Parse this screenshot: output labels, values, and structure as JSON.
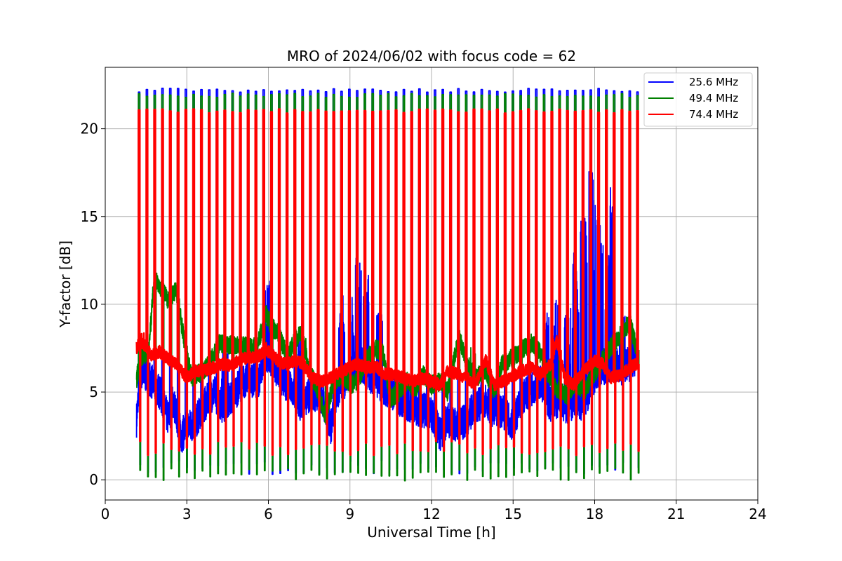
{
  "chart_data": {
    "type": "line",
    "title": "MRO of 2024/06/02 with focus code = 62",
    "xlabel": "Universal Time [h]",
    "ylabel": "Y-factor [dB]",
    "xlim": [
      0,
      24
    ],
    "ylim": [
      -1.15,
      23.5
    ],
    "xticks": [
      0,
      3,
      6,
      9,
      12,
      15,
      18,
      21,
      24
    ],
    "yticks": [
      0,
      5,
      10,
      15,
      20
    ],
    "grid": true,
    "legend_position": "top-right",
    "series": [
      {
        "name": "25.6 MHz",
        "color": "#0000ff",
        "baseline": [
          [
            1.15,
            3.4
          ],
          [
            1.3,
            6.2
          ],
          [
            1.6,
            5.8
          ],
          [
            2.0,
            5.0
          ],
          [
            2.3,
            3.5
          ],
          [
            2.5,
            4.5
          ],
          [
            2.8,
            2.5
          ],
          [
            3.0,
            3.0
          ],
          [
            3.3,
            3.2
          ],
          [
            3.6,
            4.2
          ],
          [
            4.0,
            5.0
          ],
          [
            4.3,
            4.2
          ],
          [
            4.7,
            4.8
          ],
          [
            5.0,
            5.5
          ],
          [
            5.3,
            5.8
          ],
          [
            5.6,
            5.5
          ],
          [
            5.9,
            7.2
          ],
          [
            6.1,
            6.8
          ],
          [
            6.4,
            6.0
          ],
          [
            6.8,
            5.2
          ],
          [
            7.2,
            4.3
          ],
          [
            7.6,
            5.0
          ],
          [
            8.0,
            4.6
          ],
          [
            8.3,
            3.0
          ],
          [
            8.5,
            4.8
          ],
          [
            8.8,
            5.6
          ],
          [
            9.1,
            6.2
          ],
          [
            9.4,
            6.6
          ],
          [
            9.7,
            6.0
          ],
          [
            10.0,
            5.6
          ],
          [
            10.3,
            5.2
          ],
          [
            10.7,
            4.8
          ],
          [
            11.0,
            4.4
          ],
          [
            11.3,
            4.2
          ],
          [
            11.6,
            4.0
          ],
          [
            12.0,
            3.8
          ],
          [
            12.3,
            2.6
          ],
          [
            12.6,
            3.4
          ],
          [
            13.0,
            3.0
          ],
          [
            13.3,
            3.5
          ],
          [
            13.6,
            4.2
          ],
          [
            14.0,
            4.6
          ],
          [
            14.3,
            3.8
          ],
          [
            14.6,
            4.0
          ],
          [
            15.0,
            3.2
          ],
          [
            15.3,
            4.6
          ],
          [
            15.7,
            5.2
          ],
          [
            16.0,
            5.6
          ],
          [
            16.4,
            4.2
          ],
          [
            16.7,
            4.6
          ],
          [
            17.0,
            4.0
          ],
          [
            17.3,
            4.6
          ],
          [
            17.6,
            4.2
          ],
          [
            17.9,
            5.6
          ],
          [
            18.2,
            6.3
          ],
          [
            18.6,
            6.6
          ],
          [
            19.0,
            6.4
          ],
          [
            19.3,
            6.6
          ],
          [
            19.55,
            7.0
          ]
        ],
        "spikes": [
          [
            4.4,
            7.6
          ],
          [
            6.0,
            11.4
          ],
          [
            7.2,
            9.0
          ],
          [
            8.7,
            10.5
          ],
          [
            9.15,
            11.0
          ],
          [
            9.3,
            13.2
          ],
          [
            9.6,
            12.2
          ],
          [
            10.1,
            9.5
          ],
          [
            16.2,
            9.5
          ],
          [
            16.6,
            10.5
          ],
          [
            17.0,
            10.0
          ],
          [
            17.3,
            13.4
          ],
          [
            17.6,
            15.0
          ],
          [
            17.9,
            18.0
          ],
          [
            18.2,
            15.2
          ],
          [
            18.5,
            13.0
          ],
          [
            18.65,
            17.2
          ],
          [
            19.0,
            9.5
          ],
          [
            19.4,
            8.2
          ]
        ]
      },
      {
        "name": "49.4 MHz",
        "color": "#008000",
        "baseline": [
          [
            1.15,
            5.7
          ],
          [
            1.3,
            7.0
          ],
          [
            1.6,
            7.3
          ],
          [
            1.8,
            11.6
          ],
          [
            2.0,
            11.0
          ],
          [
            2.3,
            10.3
          ],
          [
            2.6,
            10.8
          ],
          [
            2.8,
            9.0
          ],
          [
            3.0,
            7.0
          ],
          [
            3.2,
            5.8
          ],
          [
            3.5,
            6.1
          ],
          [
            3.8,
            6.5
          ],
          [
            4.2,
            7.8
          ],
          [
            4.6,
            7.7
          ],
          [
            5.0,
            7.7
          ],
          [
            5.3,
            7.5
          ],
          [
            5.6,
            7.6
          ],
          [
            5.9,
            9.5
          ],
          [
            6.1,
            8.8
          ],
          [
            6.4,
            8.2
          ],
          [
            6.7,
            7.0
          ],
          [
            7.0,
            8.0
          ],
          [
            7.2,
            8.4
          ],
          [
            7.5,
            6.2
          ],
          [
            7.8,
            5.2
          ],
          [
            8.1,
            3.6
          ],
          [
            8.4,
            5.6
          ],
          [
            8.7,
            6.0
          ],
          [
            9.0,
            5.4
          ],
          [
            9.3,
            5.6
          ],
          [
            9.6,
            6.8
          ],
          [
            9.9,
            7.5
          ],
          [
            10.2,
            7.3
          ],
          [
            10.5,
            4.6
          ],
          [
            10.8,
            5.0
          ],
          [
            11.1,
            5.6
          ],
          [
            11.4,
            5.2
          ],
          [
            11.7,
            6.0
          ],
          [
            12.0,
            5.4
          ],
          [
            12.3,
            5.6
          ],
          [
            12.6,
            5.0
          ],
          [
            13.0,
            8.2
          ],
          [
            13.3,
            6.6
          ],
          [
            13.6,
            5.8
          ],
          [
            14.0,
            6.2
          ],
          [
            14.3,
            5.0
          ],
          [
            14.6,
            6.6
          ],
          [
            15.0,
            7.0
          ],
          [
            15.3,
            7.4
          ],
          [
            15.7,
            7.8
          ],
          [
            16.0,
            7.2
          ],
          [
            16.3,
            6.0
          ],
          [
            16.6,
            5.2
          ],
          [
            17.0,
            4.8
          ],
          [
            17.3,
            5.6
          ],
          [
            17.6,
            5.0
          ],
          [
            17.9,
            5.8
          ],
          [
            18.2,
            6.6
          ],
          [
            18.6,
            7.6
          ],
          [
            19.0,
            8.4
          ],
          [
            19.3,
            9.0
          ],
          [
            19.55,
            7.4
          ]
        ],
        "spikes": [
          [
            6.0,
            9.8
          ],
          [
            7.3,
            9.4
          ],
          [
            8.15,
            3.5
          ],
          [
            13.5,
            7.7
          ]
        ]
      },
      {
        "name": "74.4 MHz",
        "color": "#ff0000",
        "baseline": [
          [
            1.15,
            7.5
          ],
          [
            1.3,
            7.9
          ],
          [
            1.5,
            7.6
          ],
          [
            1.7,
            7.1
          ],
          [
            2.0,
            7.3
          ],
          [
            2.3,
            6.9
          ],
          [
            2.6,
            6.6
          ],
          [
            3.0,
            5.8
          ],
          [
            3.3,
            6.2
          ],
          [
            3.6,
            6.2
          ],
          [
            4.0,
            6.4
          ],
          [
            4.3,
            6.6
          ],
          [
            4.6,
            6.5
          ],
          [
            5.0,
            6.9
          ],
          [
            5.3,
            7.0
          ],
          [
            5.6,
            7.0
          ],
          [
            5.9,
            7.4
          ],
          [
            6.1,
            7.2
          ],
          [
            6.4,
            6.7
          ],
          [
            6.7,
            6.6
          ],
          [
            7.0,
            6.8
          ],
          [
            7.3,
            6.6
          ],
          [
            7.6,
            5.8
          ],
          [
            8.0,
            5.6
          ],
          [
            8.3,
            5.8
          ],
          [
            8.6,
            6.1
          ],
          [
            9.0,
            6.4
          ],
          [
            9.3,
            6.6
          ],
          [
            9.6,
            6.4
          ],
          [
            10.0,
            6.4
          ],
          [
            10.3,
            6.0
          ],
          [
            10.6,
            6.0
          ],
          [
            11.0,
            5.8
          ],
          [
            11.3,
            5.6
          ],
          [
            11.6,
            5.8
          ],
          [
            12.0,
            5.6
          ],
          [
            12.3,
            5.4
          ],
          [
            12.6,
            6.2
          ],
          [
            13.0,
            6.0
          ],
          [
            13.3,
            5.8
          ],
          [
            13.6,
            5.4
          ],
          [
            14.0,
            6.8
          ],
          [
            14.3,
            5.4
          ],
          [
            14.6,
            5.6
          ],
          [
            15.0,
            5.9
          ],
          [
            15.3,
            6.2
          ],
          [
            15.7,
            6.4
          ],
          [
            16.0,
            6.0
          ],
          [
            16.4,
            6.6
          ],
          [
            16.6,
            8.0
          ],
          [
            16.9,
            5.8
          ],
          [
            17.2,
            5.4
          ],
          [
            17.6,
            6.2
          ],
          [
            18.0,
            6.8
          ],
          [
            18.3,
            6.6
          ],
          [
            18.6,
            5.8
          ],
          [
            19.0,
            6.0
          ],
          [
            19.3,
            6.4
          ],
          [
            19.55,
            6.6
          ]
        ],
        "spikes": [
          [
            1.35,
            8.4
          ],
          [
            5.9,
            8.0
          ],
          [
            16.55,
            8.1
          ]
        ]
      }
    ],
    "calibration_pulses": {
      "start_h": 1.22,
      "end_h": 19.55,
      "count": 65,
      "high_levels": {
        "25.6 MHz": 22.2,
        "49.4 MHz": 21.9,
        "74.4 MHz": 21.0
      },
      "low_levels": {
        "25.6 MHz": 0.7,
        "49.4 MHz": 0.3,
        "74.4 MHz": 1.8
      }
    }
  }
}
